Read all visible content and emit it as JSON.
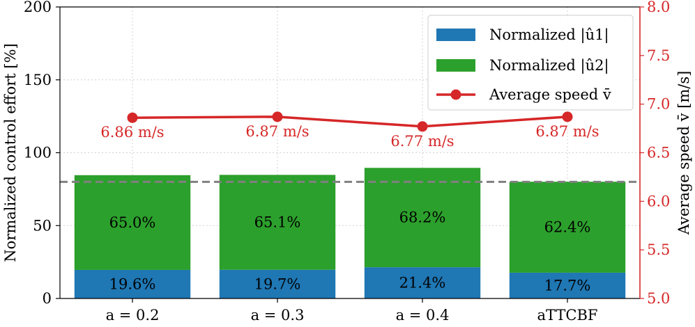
{
  "chart_data": {
    "type": "bar",
    "stacked": true,
    "secondary_type": "line",
    "categories": [
      "a = 0.2",
      "a = 0.3",
      "a = 0.4",
      "aTTCBF"
    ],
    "series": [
      {
        "name": "Normalized |û1|",
        "values": [
          19.6,
          19.7,
          21.4,
          17.7
        ],
        "labels": [
          "19.6%",
          "19.7%",
          "21.4%",
          "17.7%"
        ],
        "color": "#1f77b4"
      },
      {
        "name": "Normalized |û2|",
        "values": [
          65.0,
          65.1,
          68.2,
          62.4
        ],
        "labels": [
          "65.0%",
          "65.1%",
          "68.2%",
          "62.4%"
        ],
        "color": "#2ca02c"
      }
    ],
    "secondary_series": {
      "name": "Average speed v̄",
      "values": [
        6.86,
        6.87,
        6.77,
        6.87
      ],
      "labels": [
        "6.86 m/s",
        "6.87 m/s",
        "6.77 m/s",
        "6.87 m/s"
      ],
      "color": "#d62728"
    },
    "reference_line": {
      "value": 80,
      "style": "dashed",
      "color": "#808080"
    },
    "ylabel": "Normalized control effort [%]",
    "y2label": "Average speed v̄ [m/s]",
    "ylim": [
      0,
      200
    ],
    "y2lim": [
      5.0,
      8.0
    ],
    "yticks": [
      "0",
      "50",
      "100",
      "150",
      "200"
    ],
    "y2ticks": [
      "5.0",
      "5.5",
      "6.0",
      "6.5",
      "7.0",
      "7.5",
      "8.0"
    ],
    "xticks": [
      "a = 0.2",
      "a = 0.3",
      "a = 0.4",
      "aTTCBF"
    ],
    "grid": true,
    "legend": {
      "position": "top-right",
      "entries": [
        "Normalized |û1|",
        "Normalized |û2|",
        "Average speed v̄"
      ]
    }
  }
}
